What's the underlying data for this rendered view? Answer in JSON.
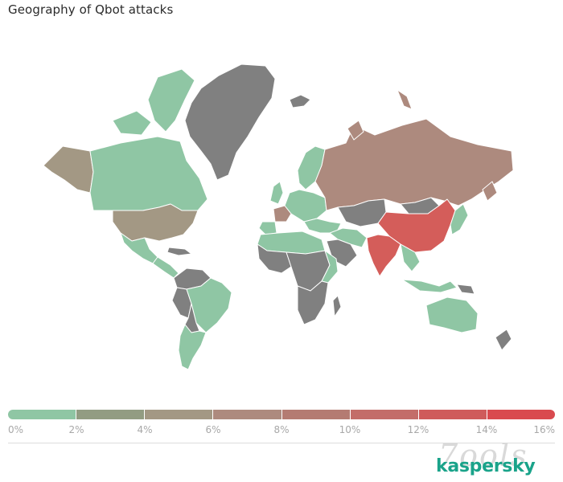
{
  "title": "Geography of Qbot attacks",
  "legend": {
    "ticks": [
      "0%",
      "2%",
      "4%",
      "6%",
      "8%",
      "10%",
      "12%",
      "14%",
      "16%"
    ],
    "segment_colors": [
      "#8fc6a4",
      "#929c82",
      "#a39884",
      "#ad8a7e",
      "#b47b72",
      "#c36d69",
      "#cf5b5b",
      "#d94a4f"
    ]
  },
  "colors": {
    "no_data": "#808080",
    "band_0_2": "#8fc6a4",
    "band_2_4": "#929c82",
    "band_4_6": "#a39884",
    "band_6_8": "#ad8a7e",
    "band_14_16": "#d45d5a"
  },
  "map_data": {
    "scale": "share of Qbot attacks, %",
    "regions": [
      {
        "name": "USA",
        "band": "4-6%"
      },
      {
        "name": "Alaska",
        "band": "4-6%"
      },
      {
        "name": "Russia",
        "band": "6-8%"
      },
      {
        "name": "France",
        "band": "6-8%"
      },
      {
        "name": "China",
        "band": "14-16%"
      },
      {
        "name": "India",
        "band": "14-16%"
      },
      {
        "name": "Greenland",
        "band": "no data"
      },
      {
        "name": "Canada",
        "band": "0-2%"
      },
      {
        "name": "Latin America",
        "band": "0-2%"
      },
      {
        "name": "Australia",
        "band": "0-2%"
      }
    ]
  },
  "watermark": "7ools",
  "brand": "kaspersky"
}
